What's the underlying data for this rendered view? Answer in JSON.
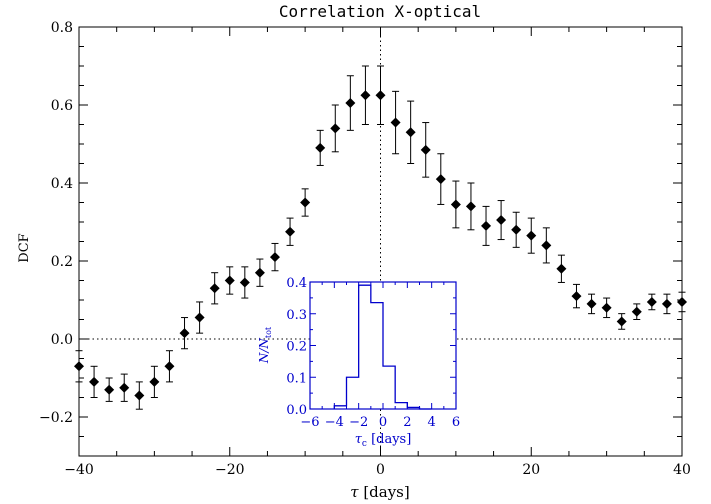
{
  "chart_data": [
    {
      "type": "scatter",
      "title": "Correlation X-optical",
      "xlabel_symbol": "τ",
      "xlabel_unit": " [days]",
      "ylabel": "DCF",
      "xlim": [
        -40,
        40
      ],
      "ylim": [
        -0.3,
        0.8
      ],
      "xticks": [
        -40,
        -20,
        0,
        20,
        40
      ],
      "yticks": [
        -0.2,
        0.0,
        0.2,
        0.4,
        0.6,
        0.8
      ],
      "xtick_labels": [
        "−40",
        "−20",
        "0",
        "20",
        "40"
      ],
      "ytick_labels": [
        "−0.2",
        "0.0",
        "0.2",
        "0.4",
        "0.6",
        "0.8"
      ],
      "reference_lines": {
        "y": 0.0,
        "x": 0.0
      },
      "marker_color": "#000000",
      "points": [
        {
          "x": -40,
          "y": -0.07,
          "err": 0.04
        },
        {
          "x": -38,
          "y": -0.11,
          "err": 0.04
        },
        {
          "x": -36,
          "y": -0.13,
          "err": 0.03
        },
        {
          "x": -34,
          "y": -0.125,
          "err": 0.035
        },
        {
          "x": -32,
          "y": -0.145,
          "err": 0.035
        },
        {
          "x": -30,
          "y": -0.11,
          "err": 0.04
        },
        {
          "x": -28,
          "y": -0.07,
          "err": 0.04
        },
        {
          "x": -26,
          "y": 0.015,
          "err": 0.04
        },
        {
          "x": -24,
          "y": 0.055,
          "err": 0.04
        },
        {
          "x": -22,
          "y": 0.13,
          "err": 0.04
        },
        {
          "x": -20,
          "y": 0.15,
          "err": 0.035
        },
        {
          "x": -18,
          "y": 0.145,
          "err": 0.04
        },
        {
          "x": -16,
          "y": 0.17,
          "err": 0.035
        },
        {
          "x": -14,
          "y": 0.21,
          "err": 0.035
        },
        {
          "x": -12,
          "y": 0.275,
          "err": 0.035
        },
        {
          "x": -10,
          "y": 0.35,
          "err": 0.035
        },
        {
          "x": -8,
          "y": 0.49,
          "err": 0.045
        },
        {
          "x": -6,
          "y": 0.54,
          "err": 0.06
        },
        {
          "x": -4,
          "y": 0.605,
          "err": 0.07
        },
        {
          "x": -2,
          "y": 0.625,
          "err": 0.075
        },
        {
          "x": 0,
          "y": 0.625,
          "err": 0.075
        },
        {
          "x": 2,
          "y": 0.555,
          "err": 0.08
        },
        {
          "x": 4,
          "y": 0.53,
          "err": 0.08
        },
        {
          "x": 6,
          "y": 0.485,
          "err": 0.07
        },
        {
          "x": 8,
          "y": 0.41,
          "err": 0.065
        },
        {
          "x": 10,
          "y": 0.345,
          "err": 0.06
        },
        {
          "x": 12,
          "y": 0.34,
          "err": 0.06
        },
        {
          "x": 14,
          "y": 0.29,
          "err": 0.05
        },
        {
          "x": 16,
          "y": 0.305,
          "err": 0.05
        },
        {
          "x": 18,
          "y": 0.28,
          "err": 0.045
        },
        {
          "x": 20,
          "y": 0.265,
          "err": 0.045
        },
        {
          "x": 22,
          "y": 0.24,
          "err": 0.045
        },
        {
          "x": 24,
          "y": 0.18,
          "err": 0.035
        },
        {
          "x": 26,
          "y": 0.11,
          "err": 0.03
        },
        {
          "x": 28,
          "y": 0.09,
          "err": 0.025
        },
        {
          "x": 30,
          "y": 0.08,
          "err": 0.025
        },
        {
          "x": 32,
          "y": 0.045,
          "err": 0.02
        },
        {
          "x": 34,
          "y": 0.07,
          "err": 0.02
        },
        {
          "x": 36,
          "y": 0.095,
          "err": 0.02
        },
        {
          "x": 38,
          "y": 0.09,
          "err": 0.025
        },
        {
          "x": 40,
          "y": 0.095,
          "err": 0.025
        }
      ]
    },
    {
      "type": "bar",
      "title": "",
      "xlabel_symbol": "τ",
      "xlabel_subscript": "c",
      "xlabel_unit": " [days]",
      "ylabel_n": "N/N",
      "ylabel_subscript": "tot",
      "xlim": [
        -6,
        6
      ],
      "ylim": [
        0,
        0.4
      ],
      "xticks": [
        -6,
        -4,
        -2,
        0,
        2,
        4,
        6
      ],
      "yticks": [
        0.0,
        0.1,
        0.2,
        0.3,
        0.4
      ],
      "xtick_labels": [
        "−6",
        "−4",
        "−2",
        "0",
        "2",
        "4",
        "6"
      ],
      "ytick_labels": [
        "0.0",
        "0.1",
        "0.2",
        "0.3",
        "0.4"
      ],
      "color": "#0000cc",
      "bins": [
        {
          "x0": -4,
          "x1": -3,
          "y": 0.01
        },
        {
          "x0": -3,
          "x1": -2,
          "y": 0.1
        },
        {
          "x0": -2,
          "x1": -1,
          "y": 0.39
        },
        {
          "x0": -1,
          "x1": 0,
          "y": 0.335
        },
        {
          "x0": 0,
          "x1": 1,
          "y": 0.135
        },
        {
          "x0": 1,
          "x1": 2,
          "y": 0.02
        },
        {
          "x0": 2,
          "x1": 3,
          "y": 0.005
        },
        {
          "x0": 3,
          "x1": 4,
          "y": 0.0
        }
      ]
    }
  ]
}
